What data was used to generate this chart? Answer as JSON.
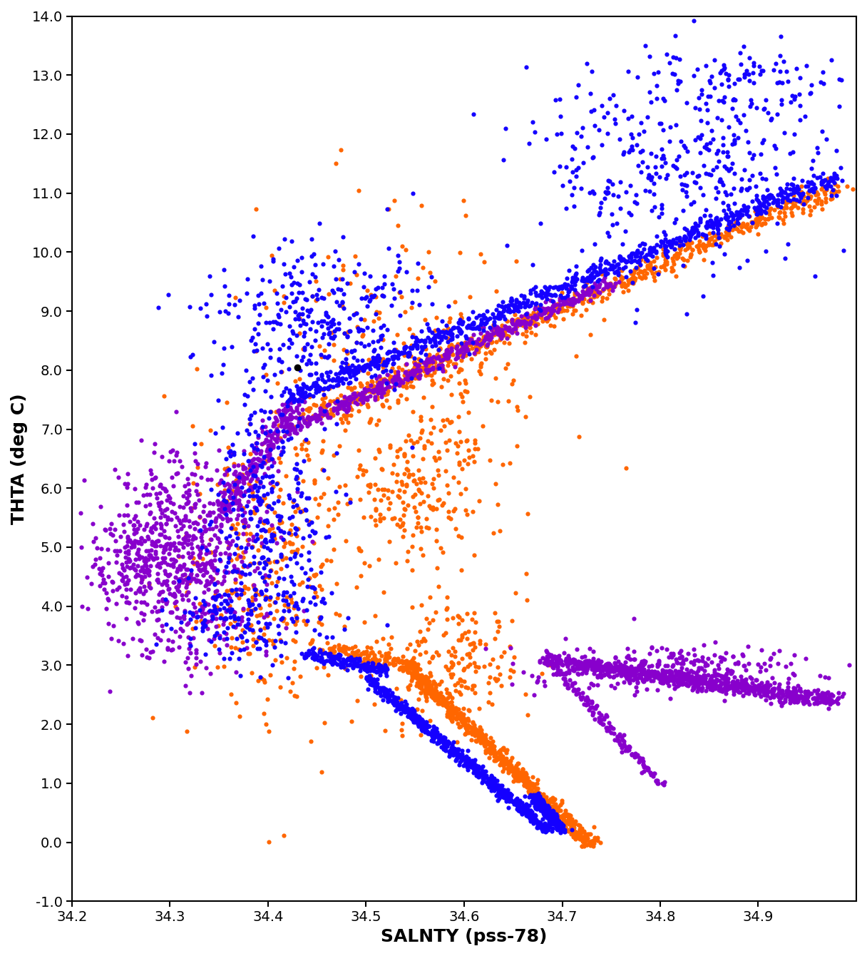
{
  "title": "",
  "xlabel": "SALNTY (pss-78)",
  "ylabel": "THTA (deg C)",
  "xlim": [
    34.2,
    35.0
  ],
  "ylim": [
    -1.0,
    14.0
  ],
  "xticks": [
    34.2,
    34.3,
    34.4,
    34.5,
    34.6,
    34.7,
    34.8,
    34.9
  ],
  "yticks": [
    -1.0,
    0.0,
    1.0,
    2.0,
    3.0,
    4.0,
    5.0,
    6.0,
    7.0,
    8.0,
    9.0,
    10.0,
    11.0,
    12.0,
    13.0,
    14.0
  ],
  "colors": {
    "blue": "#1400FF",
    "orange": "#FF6600",
    "purple": "#8800CC",
    "black": "#000000"
  },
  "marker_size": 20,
  "alpha": 1.0,
  "background": "#FFFFFF",
  "seed": 42
}
